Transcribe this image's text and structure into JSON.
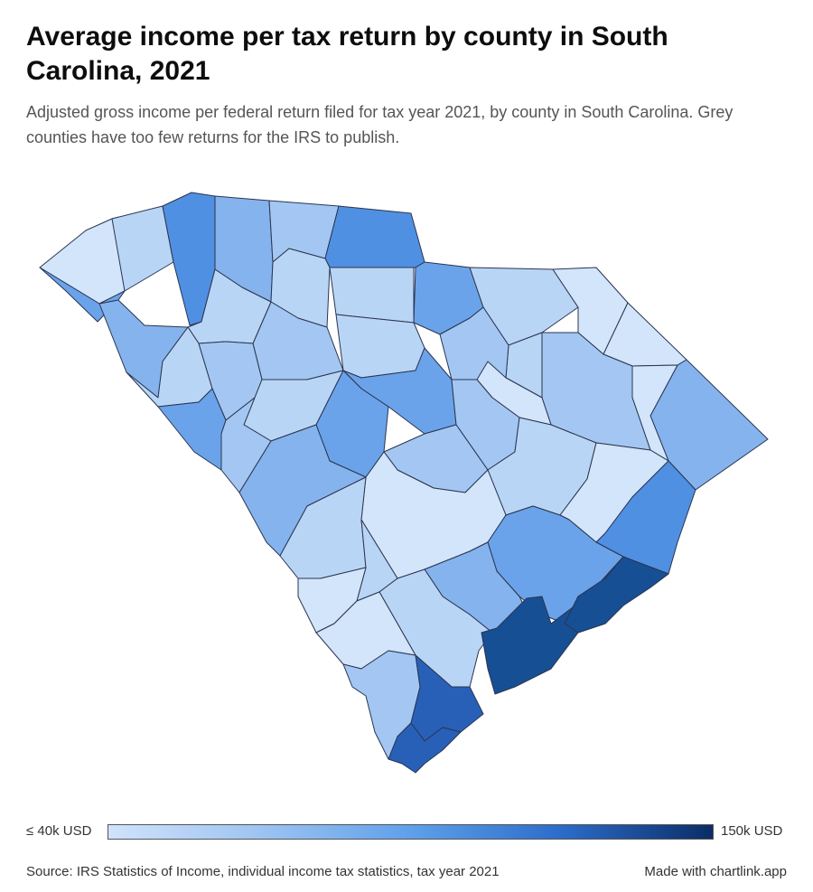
{
  "title": "Average income per tax return by county in South Carolina, 2021",
  "subtitle": "Adjusted gross income per federal return filed for tax year 2021, by county in South Carolina. Grey counties have too few returns for the IRS to publish.",
  "legend": {
    "min_label": "≤ 40k USD",
    "max_label": "150k USD",
    "color_min": "#cfe3fb",
    "color_max": "#0b2d66"
  },
  "source": "Source: IRS Statistics of Income, individual income tax statistics, tax year 2021",
  "credit": "Made with chartlink.app",
  "colors": {
    "very_light": "#d2e5fb",
    "light": "#b9d5f6",
    "light_mid": "#a3c7f2",
    "mid": "#85b3ee",
    "mid_dark": "#6aa3ea",
    "bright": "#4f90e3",
    "dark": "#2860b8",
    "darkest": "#174f95",
    "border": "#2b3550"
  }
}
